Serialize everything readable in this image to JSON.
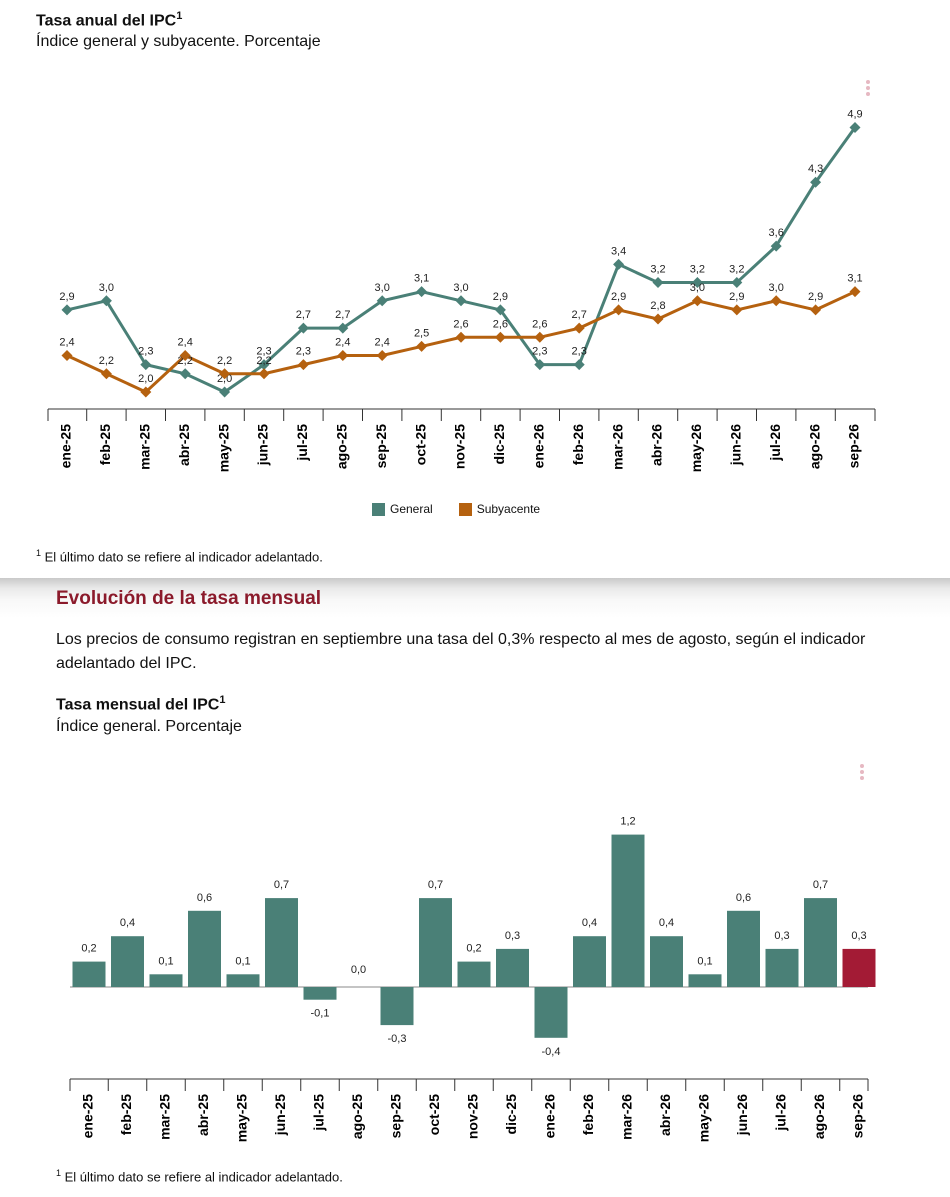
{
  "top": {
    "title": "Tasa anual del IPC",
    "title_sup": "1",
    "subtitle": "Índice general y subyacente. Porcentaje",
    "legend": {
      "general": "General",
      "subyacente": "Subyacente"
    },
    "note_sup": "1",
    "note": "El último dato se refiere al indicador adelantado."
  },
  "section": {
    "title": "Evolución de la tasa mensual",
    "paragraph": "Los precios de consumo registran en septiembre una tasa del 0,3% respecto al mes de agosto, según el indicador adelantado del IPC."
  },
  "bottom": {
    "title": "Tasa mensual del IPC",
    "title_sup": "1",
    "subtitle": "Índice general. Porcentaje",
    "note_sup": "1",
    "note": "El último dato se refiere al indicador adelantado."
  },
  "colors": {
    "general": "#4a8077",
    "subyacente": "#b5610f",
    "highlight": "#a31b35",
    "section_title": "#8b1a2b"
  },
  "chart_data": [
    {
      "type": "line",
      "title": "Tasa anual del IPC",
      "subtitle": "Índice general y subyacente. Porcentaje",
      "categories": [
        "ene-25",
        "feb-25",
        "mar-25",
        "abr-25",
        "may-25",
        "jun-25",
        "jul-25",
        "ago-25",
        "sep-25",
        "oct-25",
        "nov-25",
        "dic-25",
        "ene-26",
        "feb-26",
        "mar-26",
        "abr-26",
        "may-26",
        "jun-26",
        "jul-26",
        "ago-26",
        "sep-26"
      ],
      "series": [
        {
          "name": "General",
          "values": [
            2.9,
            3.0,
            2.3,
            2.2,
            2.0,
            2.3,
            2.7,
            2.7,
            3.0,
            3.1,
            3.0,
            2.9,
            2.3,
            2.3,
            3.4,
            3.2,
            3.2,
            3.2,
            3.6,
            4.3,
            4.9
          ],
          "labels": [
            "2,9",
            "3,0",
            "2,3",
            "2,2",
            "2,0",
            "2,3",
            "2,7",
            "2,7",
            "3,0",
            "3,1",
            "3,0",
            "2,9",
            "2,3",
            "2,3",
            "3,4",
            "3,2",
            "3,2",
            "3,2",
            "3,6",
            "4,3",
            "4,9"
          ]
        },
        {
          "name": "Subyacente",
          "values": [
            2.4,
            2.2,
            2.0,
            2.4,
            2.2,
            2.2,
            2.3,
            2.4,
            2.4,
            2.5,
            2.6,
            2.6,
            2.6,
            2.7,
            2.9,
            2.8,
            3.0,
            2.9,
            3.0,
            2.9,
            3.1
          ],
          "labels": [
            "2,4",
            "2,2",
            "2,0",
            "2,4",
            "2,2",
            "2,2",
            "2,3",
            "2,4",
            "2,4",
            "2,5",
            "2,6",
            "2,6",
            "2,6",
            "2,7",
            "2,9",
            "2,8",
            "3,0",
            "2,9",
            "3,0",
            "2,9",
            "3,1"
          ]
        }
      ],
      "legend": "bottom",
      "grid": false
    },
    {
      "type": "bar",
      "title": "Tasa mensual del IPC",
      "subtitle": "Índice general. Porcentaje",
      "categories": [
        "ene-25",
        "feb-25",
        "mar-25",
        "abr-25",
        "may-25",
        "jun-25",
        "jul-25",
        "ago-25",
        "sep-25",
        "oct-25",
        "nov-25",
        "dic-25",
        "ene-26",
        "feb-26",
        "mar-26",
        "abr-26",
        "may-26",
        "jun-26",
        "jul-26",
        "ago-26",
        "sep-26"
      ],
      "values": [
        0.2,
        0.4,
        0.1,
        0.6,
        0.1,
        0.7,
        -0.1,
        0.0,
        -0.3,
        0.7,
        0.2,
        0.3,
        -0.4,
        0.4,
        1.2,
        0.4,
        0.1,
        0.6,
        0.3,
        0.7,
        0.3
      ],
      "labels": [
        "0,2",
        "0,4",
        "0,1",
        "0,6",
        "0,1",
        "0,7",
        "-0,1",
        "0,0",
        "-0,3",
        "0,7",
        "0,2",
        "0,3",
        "-0,4",
        "0,4",
        "1,2",
        "0,4",
        "0,1",
        "0,6",
        "0,3",
        "0,7",
        "0,3"
      ],
      "highlight_last": true,
      "grid": false
    }
  ]
}
